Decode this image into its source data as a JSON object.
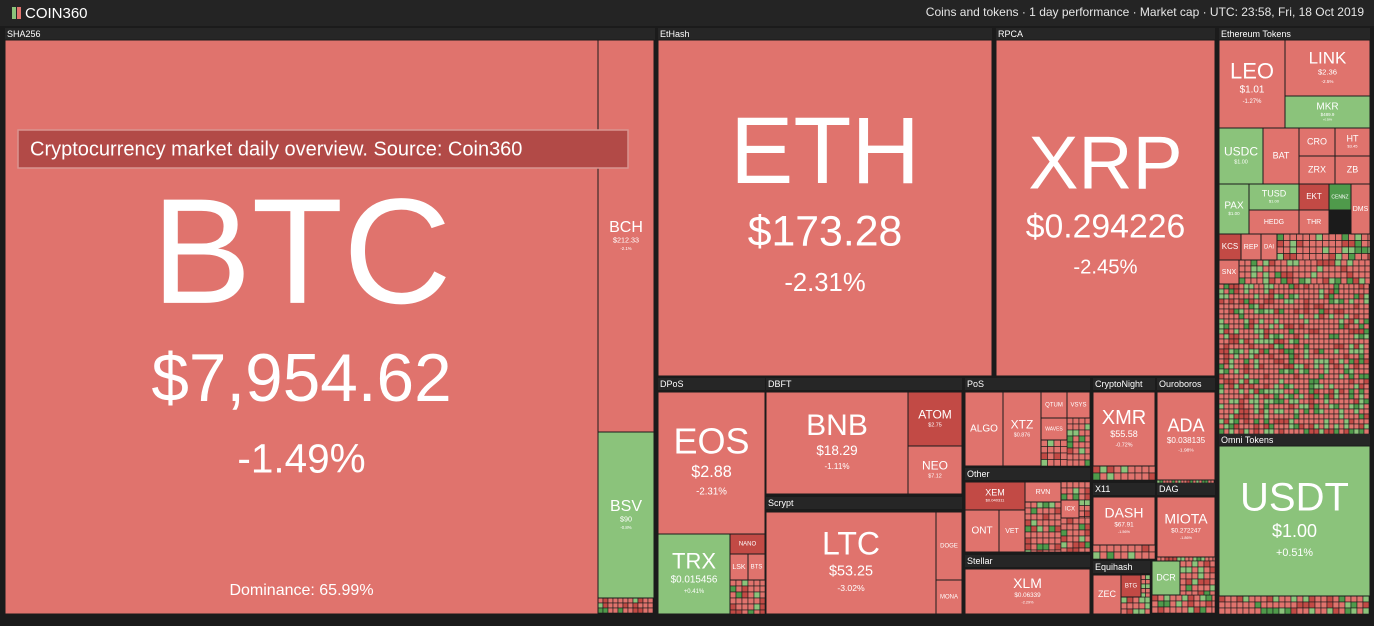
{
  "header": {
    "logo": "COIN360",
    "info": "Coins and tokens · 1 day performance · Market cap · UTC: 23:58, Fri, 18 Oct 2019"
  },
  "caption": "Cryptocurrency market daily overview. Source: Coin360",
  "groups": [
    {
      "label": "SHA256",
      "tiles": [
        {
          "symbol": "BTC",
          "price": "$7,954.62",
          "change": "-1.49%",
          "note": "Dominance: 65.99%"
        },
        {
          "symbol": "BCH",
          "price": "$212.33",
          "change": "-2.1%"
        },
        {
          "symbol": "BSV",
          "price": "$90",
          "change": "-0.8%"
        }
      ]
    },
    {
      "label": "EtHash",
      "tiles": [
        {
          "symbol": "ETH",
          "price": "$173.28",
          "change": "-2.31%"
        }
      ]
    },
    {
      "label": "RPCA",
      "tiles": [
        {
          "symbol": "XRP",
          "price": "$0.294226",
          "change": "-2.45%"
        }
      ]
    },
    {
      "label": "Ethereum Tokens",
      "tiles": [
        {
          "symbol": "LEO",
          "price": "$1.01",
          "change": "-1.27%"
        },
        {
          "symbol": "LINK",
          "price": "$2.36",
          "change": "-2.5%"
        },
        {
          "symbol": "MKR",
          "price": "$489.9",
          "change": "+0.38%"
        },
        {
          "symbol": "USDC",
          "price": "$1.00"
        },
        {
          "symbol": "BAT"
        },
        {
          "symbol": "CRO"
        },
        {
          "symbol": "HT",
          "price": "$3.45"
        },
        {
          "symbol": "ZRX"
        },
        {
          "symbol": "ZB"
        },
        {
          "symbol": "PAX",
          "price": "$1.00"
        },
        {
          "symbol": "TUSD",
          "price": "$1.00"
        },
        {
          "symbol": "HEDG"
        },
        {
          "symbol": "EKT"
        },
        {
          "symbol": "THR"
        },
        {
          "symbol": "CENNZ"
        },
        {
          "symbol": "DMS"
        },
        {
          "symbol": "KCS"
        },
        {
          "symbol": "REP"
        },
        {
          "symbol": "DAI"
        },
        {
          "symbol": "SNX"
        }
      ]
    },
    {
      "label": "Omni Tokens",
      "tiles": [
        {
          "symbol": "USDT",
          "price": "$1.00",
          "change": "+0.51%"
        }
      ]
    },
    {
      "label": "DPoS",
      "tiles": [
        {
          "symbol": "EOS",
          "price": "$2.88",
          "change": "-2.31%"
        },
        {
          "symbol": "TRX",
          "price": "$0.015456",
          "change": "+0.41%"
        },
        {
          "symbol": "NANO"
        },
        {
          "symbol": "LSK"
        },
        {
          "symbol": "BTS"
        }
      ]
    },
    {
      "label": "DBFT",
      "tiles": [
        {
          "symbol": "BNB",
          "price": "$18.29",
          "change": "-1.11%"
        },
        {
          "symbol": "ATOM",
          "price": "$2.75"
        },
        {
          "symbol": "NEO",
          "price": "$7.12"
        }
      ]
    },
    {
      "label": "Scrypt",
      "tiles": [
        {
          "symbol": "LTC",
          "price": "$53.25",
          "change": "-3.02%"
        },
        {
          "symbol": "DOGE"
        },
        {
          "symbol": "MONA"
        }
      ]
    },
    {
      "label": "PoS",
      "tiles": [
        {
          "symbol": "ALGO"
        },
        {
          "symbol": "XTZ",
          "price": "$0.876"
        },
        {
          "symbol": "QTUM"
        },
        {
          "symbol": "VSYS"
        },
        {
          "symbol": "WAVES"
        }
      ]
    },
    {
      "label": "Other",
      "tiles": [
        {
          "symbol": "XEM",
          "price": "$0.040311"
        },
        {
          "symbol": "RVN"
        },
        {
          "symbol": "ONT"
        },
        {
          "symbol": "VET"
        },
        {
          "symbol": "ICX"
        }
      ]
    },
    {
      "label": "Stellar",
      "tiles": [
        {
          "symbol": "XLM",
          "price": "$0.06339",
          "change": "-2.29%"
        }
      ]
    },
    {
      "label": "CryptoNight",
      "tiles": [
        {
          "symbol": "XMR",
          "price": "$55.58",
          "change": "-0.72%"
        }
      ]
    },
    {
      "label": "Ouroboros",
      "tiles": [
        {
          "symbol": "ADA",
          "price": "$0.038135",
          "change": "-1.98%"
        }
      ]
    },
    {
      "label": "X11",
      "tiles": [
        {
          "symbol": "DASH",
          "price": "$67.91",
          "change": "-1.56%"
        }
      ]
    },
    {
      "label": "DAG",
      "tiles": [
        {
          "symbol": "MIOTA",
          "price": "$0.272247",
          "change": "-1.86%"
        }
      ]
    },
    {
      "label": "Equihash",
      "tiles": [
        {
          "symbol": "ZEC"
        },
        {
          "symbol": "BTG"
        }
      ]
    },
    {
      "tiles": [
        {
          "symbol": "DCR"
        }
      ]
    }
  ]
}
